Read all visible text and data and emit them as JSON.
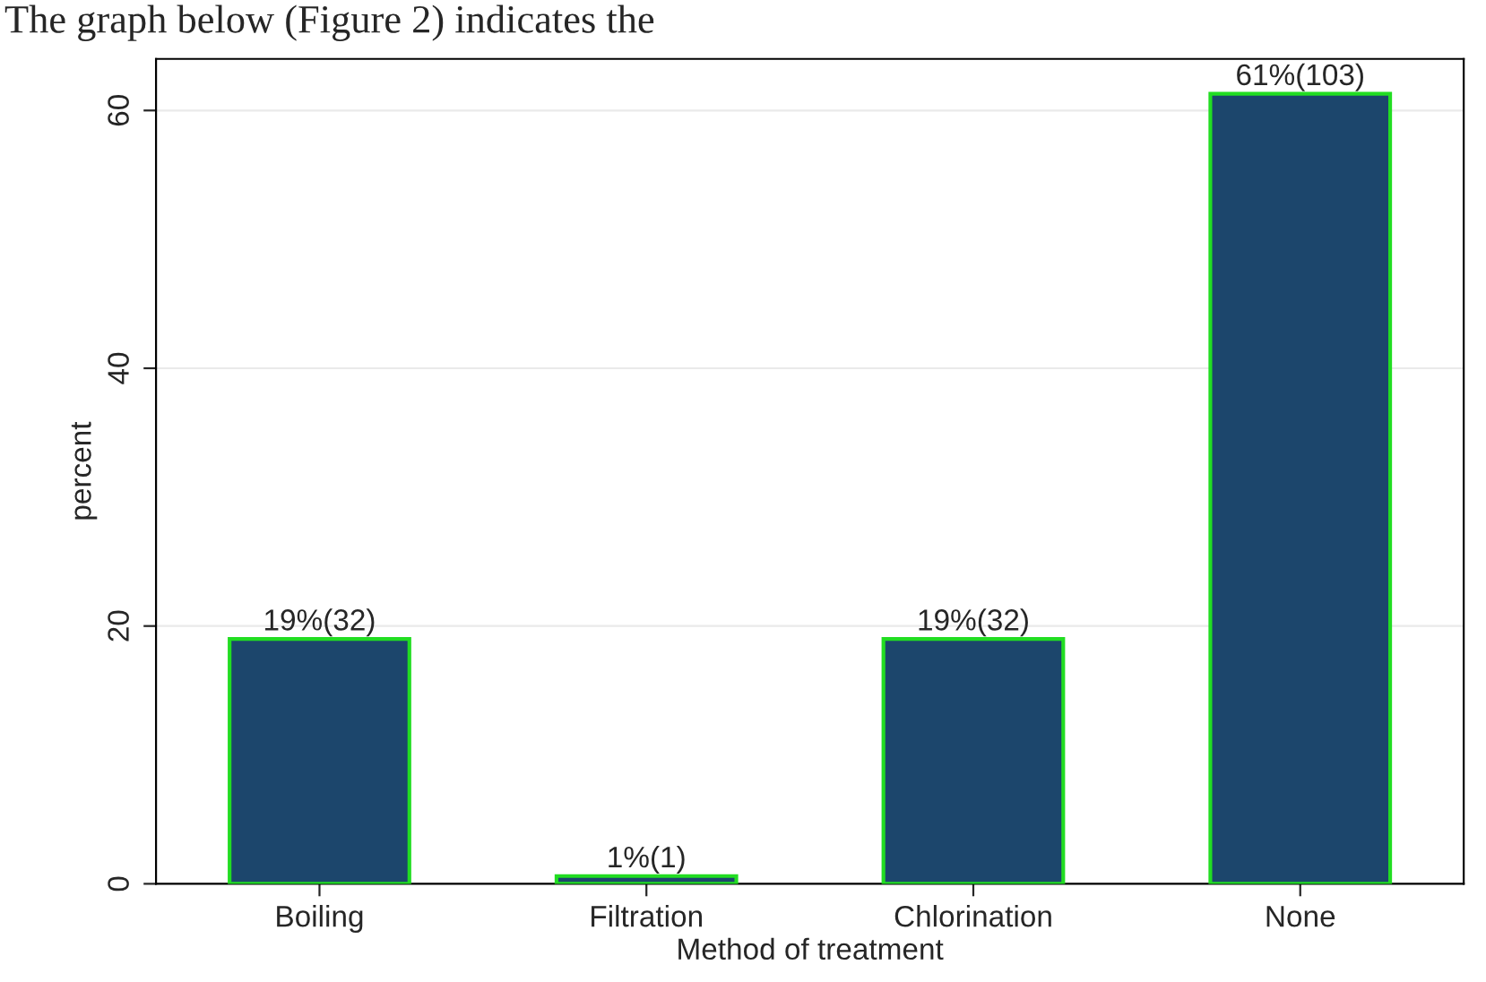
{
  "chart_data": {
    "type": "bar",
    "categories": [
      "Boiling",
      "Filtration",
      "Chlorination",
      "None"
    ],
    "values": [
      19,
      0.6,
      19,
      61.3
    ],
    "value_labels": [
      "19%(32)",
      "1%(1)",
      "19%(32)",
      "61%(103)"
    ],
    "color": "#1c466c",
    "xlabel": "Method of treatment",
    "ylabel": "percent",
    "ylim": [
      0,
      64
    ],
    "yticks": [
      0,
      20,
      40,
      60
    ],
    "grid": "y",
    "annotations": [
      "The graph below (Figure 2) indicates the"
    ]
  }
}
